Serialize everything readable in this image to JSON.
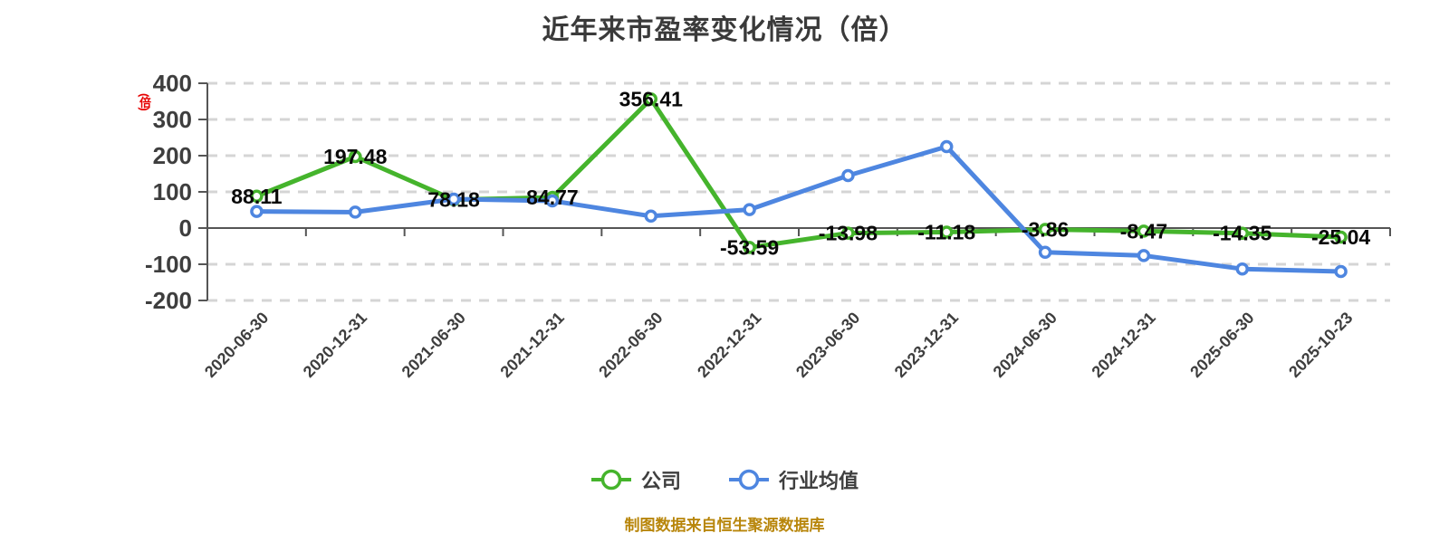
{
  "title": "近年来市盈率变化情况（倍）",
  "y_axis_unit": "(倍)",
  "footer": "制图数据来自恒生聚源数据库",
  "legend": {
    "items": [
      {
        "label": "公司",
        "color": "#45b42c"
      },
      {
        "label": "行业均值",
        "color": "#4e86e0"
      }
    ]
  },
  "colors": {
    "company_series": "#45b42c",
    "industry_series": "#4e86e0",
    "grid": "#d5d5d5",
    "axis": "#555555",
    "unit_stamp_red": "#e60000",
    "footer_text": "#b8860b",
    "data_label": "#090909"
  },
  "chart_data": {
    "type": "line",
    "title": "近年来市盈率变化情况（倍）",
    "xlabel": "",
    "ylabel": "(倍)",
    "ylim": [
      -200,
      400
    ],
    "yticks": [
      400,
      300,
      200,
      100,
      0,
      -100,
      -200
    ],
    "grid": "dashed horizontal",
    "legend_position": "bottom",
    "categories": [
      "2020-06-30",
      "2020-12-31",
      "2021-06-30",
      "2021-12-31",
      "2022-06-30",
      "2022-12-31",
      "2023-06-30",
      "2023-12-31",
      "2024-06-30",
      "2024-12-31",
      "2025-06-30",
      "2025-10-23"
    ],
    "series": [
      {
        "name": "公司",
        "color": "#45b42c",
        "show_labels": true,
        "values": [
          88.11,
          197.48,
          78.18,
          84.77,
          356.41,
          -53.59,
          -13.98,
          -11.18,
          -3.86,
          -8.47,
          -14.35,
          -25.04
        ]
      },
      {
        "name": "行业均值",
        "color": "#4e86e0",
        "show_labels": false,
        "values": [
          46,
          44,
          80,
          75,
          33,
          51,
          145,
          225,
          -67,
          -76,
          -113,
          -120
        ]
      }
    ]
  }
}
